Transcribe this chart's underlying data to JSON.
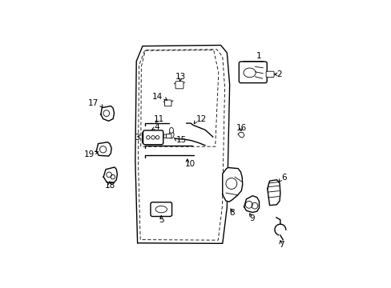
{
  "background_color": "#ffffff",
  "fig_width": 4.89,
  "fig_height": 3.6,
  "dpi": 100,
  "door_outer": {
    "x": [
      0.2,
      0.185,
      0.195,
      0.235,
      0.595,
      0.625,
      0.64,
      0.63,
      0.61,
      0.2
    ],
    "y": [
      0.06,
      0.45,
      0.89,
      0.96,
      0.965,
      0.93,
      0.78,
      0.22,
      0.06,
      0.06
    ]
  },
  "door_inner_dashed": {
    "x": [
      0.218,
      0.202,
      0.212,
      0.248,
      0.575,
      0.602,
      0.614,
      0.605,
      0.587,
      0.218
    ],
    "y": [
      0.075,
      0.445,
      0.87,
      0.94,
      0.945,
      0.912,
      0.77,
      0.23,
      0.075,
      0.075
    ]
  },
  "window_dashed": {
    "x": [
      0.218,
      0.22,
      0.248,
      0.565,
      0.59,
      0.575,
      0.218
    ],
    "y": [
      0.5,
      0.865,
      0.94,
      0.942,
      0.84,
      0.5,
      0.5
    ]
  },
  "label_fontsize": 7.5
}
